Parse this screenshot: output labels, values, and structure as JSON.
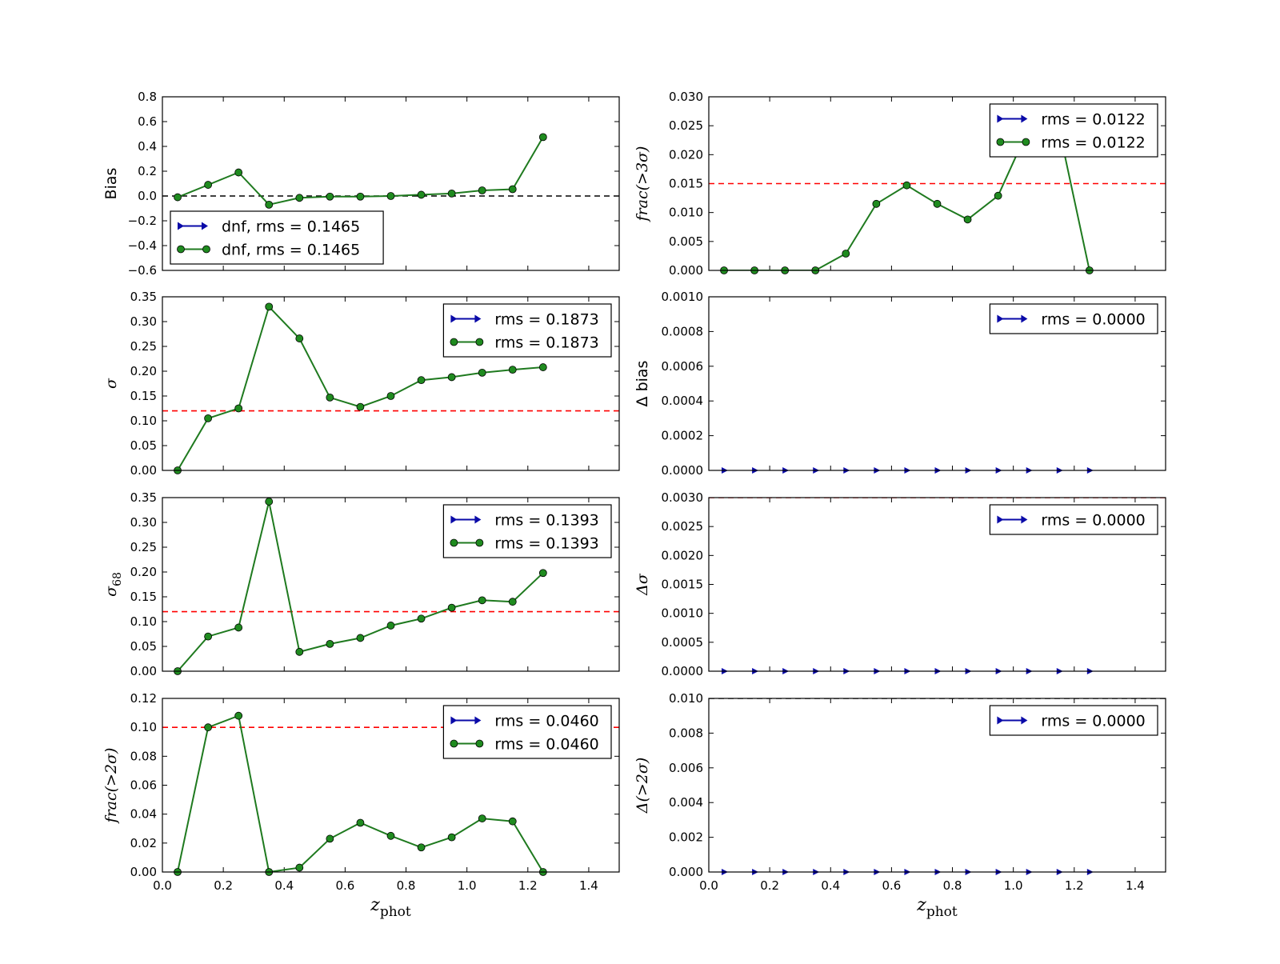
{
  "figure": {
    "colors": {
      "series_marker": "#1f8b1f",
      "series_line": "#1f7a1f",
      "arrow": "#0a0aa8",
      "ref_red": "#ff0000",
      "ref_black": "#000000"
    },
    "xlabel_main": "z",
    "xlabel_sub": "phot"
  },
  "chart_data": [
    {
      "type": "line",
      "id": "bias",
      "ylabel": "Bias",
      "ylabel_style": "plain",
      "ylim": [
        -0.6,
        0.8
      ],
      "yticks": [
        -0.6,
        -0.4,
        -0.2,
        0.0,
        0.2,
        0.4,
        0.6,
        0.8
      ],
      "ytick_decimals": 1,
      "xlim": [
        0.0,
        1.5
      ],
      "xticks": [
        0.0,
        0.2,
        0.4,
        0.6,
        0.8,
        1.0,
        1.2,
        1.4
      ],
      "show_xtick_labels": false,
      "hline": {
        "y": 0.0,
        "color": "black"
      },
      "x": [
        0.05,
        0.15,
        0.25,
        0.35,
        0.45,
        0.55,
        0.65,
        0.75,
        0.85,
        0.95,
        1.05,
        1.15,
        1.25
      ],
      "series": [
        {
          "y": [
            -0.01,
            0.09,
            0.19,
            -0.07,
            -0.015,
            -0.005,
            -0.005,
            0.0,
            0.01,
            0.02,
            0.045,
            0.055,
            0.475
          ]
        }
      ],
      "legend": {
        "loc": "lower-left",
        "entries": [
          "dnf, rms = 0.1465",
          "dnf, rms = 0.1465"
        ]
      }
    },
    {
      "type": "line",
      "id": "frac3",
      "ylabel": "frac(>3σ)",
      "ylabel_style": "italic",
      "ylim": [
        0.0,
        0.03
      ],
      "yticks": [
        0.0,
        0.005,
        0.01,
        0.015,
        0.02,
        0.025,
        0.03
      ],
      "ytick_decimals": 3,
      "xlim": [
        0.0,
        1.5
      ],
      "xticks": [
        0.0,
        0.2,
        0.4,
        0.6,
        0.8,
        1.0,
        1.2,
        1.4
      ],
      "show_xtick_labels": false,
      "hline": {
        "y": 0.015,
        "color": "red"
      },
      "x": [
        0.05,
        0.15,
        0.25,
        0.35,
        0.45,
        0.55,
        0.65,
        0.75,
        0.85,
        0.95,
        1.05,
        1.15,
        1.25
      ],
      "series": [
        {
          "y": [
            0.0,
            0.0,
            0.0,
            0.0,
            0.0029,
            0.0115,
            0.0147,
            0.0115,
            0.0088,
            0.0129,
            0.0245,
            0.0245,
            0.0
          ]
        }
      ],
      "legend": {
        "loc": "upper-right",
        "entries": [
          "rms = 0.0122",
          "rms = 0.0122"
        ]
      }
    },
    {
      "type": "line",
      "id": "sigma",
      "ylabel": "σ",
      "ylabel_style": "italic",
      "ylim": [
        0.0,
        0.35
      ],
      "yticks": [
        0.0,
        0.05,
        0.1,
        0.15,
        0.2,
        0.25,
        0.3,
        0.35
      ],
      "ytick_decimals": 2,
      "xlim": [
        0.0,
        1.5
      ],
      "xticks": [
        0.0,
        0.2,
        0.4,
        0.6,
        0.8,
        1.0,
        1.2,
        1.4
      ],
      "show_xtick_labels": false,
      "hline": {
        "y": 0.12,
        "color": "red"
      },
      "x": [
        0.05,
        0.15,
        0.25,
        0.35,
        0.45,
        0.55,
        0.65,
        0.75,
        0.85,
        0.95,
        1.05,
        1.15,
        1.25
      ],
      "series": [
        {
          "y": [
            0.0,
            0.105,
            0.125,
            0.33,
            0.266,
            0.147,
            0.128,
            0.15,
            0.182,
            0.188,
            0.197,
            0.203,
            0.208
          ]
        }
      ],
      "legend": {
        "loc": "upper-right",
        "entries": [
          "rms = 0.1873",
          "rms = 0.1873"
        ]
      }
    },
    {
      "type": "line",
      "id": "dbias",
      "ylabel": "Δ bias",
      "ylabel_style": "plain-large",
      "ylim": [
        0.0,
        0.001
      ],
      "yticks": [
        0.0,
        0.0002,
        0.0004,
        0.0006,
        0.0008,
        0.001
      ],
      "ytick_decimals": 4,
      "xlim": [
        0.0,
        1.5
      ],
      "xticks": [
        0.0,
        0.2,
        0.4,
        0.6,
        0.8,
        1.0,
        1.2,
        1.4
      ],
      "show_xtick_labels": false,
      "hline": null,
      "x": [
        0.05,
        0.15,
        0.25,
        0.35,
        0.45,
        0.55,
        0.65,
        0.75,
        0.85,
        0.95,
        1.05,
        1.15,
        1.25
      ],
      "arrows": true,
      "legend": {
        "loc": "upper-right",
        "entries": [
          "rms = 0.0000"
        ]
      }
    },
    {
      "type": "line",
      "id": "sigma68",
      "ylabel": "σ",
      "ylabel_sub": "68",
      "ylabel_style": "italic",
      "ylim": [
        0.0,
        0.35
      ],
      "yticks": [
        0.0,
        0.05,
        0.1,
        0.15,
        0.2,
        0.25,
        0.3,
        0.35
      ],
      "ytick_decimals": 2,
      "xlim": [
        0.0,
        1.5
      ],
      "xticks": [
        0.0,
        0.2,
        0.4,
        0.6,
        0.8,
        1.0,
        1.2,
        1.4
      ],
      "show_xtick_labels": false,
      "hline": {
        "y": 0.12,
        "color": "red"
      },
      "x": [
        0.05,
        0.15,
        0.25,
        0.35,
        0.45,
        0.55,
        0.65,
        0.75,
        0.85,
        0.95,
        1.05,
        1.15,
        1.25
      ],
      "series": [
        {
          "y": [
            0.0,
            0.07,
            0.088,
            0.342,
            0.039,
            0.055,
            0.067,
            0.092,
            0.106,
            0.128,
            0.143,
            0.14,
            0.198
          ]
        }
      ],
      "legend": {
        "loc": "upper-right",
        "entries": [
          "rms = 0.1393",
          "rms = 0.1393"
        ]
      }
    },
    {
      "type": "line",
      "id": "dsigma",
      "ylabel": "Δσ",
      "ylabel_style": "italic",
      "ylim": [
        0.0,
        0.003
      ],
      "yticks": [
        0.0,
        0.0005,
        0.001,
        0.0015,
        0.002,
        0.0025,
        0.003
      ],
      "ytick_decimals": 4,
      "xlim": [
        0.0,
        1.5
      ],
      "xticks": [
        0.0,
        0.2,
        0.4,
        0.6,
        0.8,
        1.0,
        1.2,
        1.4
      ],
      "show_xtick_labels": false,
      "hline": {
        "y": 0.003,
        "color": "red"
      },
      "x": [
        0.05,
        0.15,
        0.25,
        0.35,
        0.45,
        0.55,
        0.65,
        0.75,
        0.85,
        0.95,
        1.05,
        1.15,
        1.25
      ],
      "arrows": true,
      "legend": {
        "loc": "upper-right",
        "entries": [
          "rms = 0.0000"
        ]
      }
    },
    {
      "type": "line",
      "id": "frac2",
      "ylabel": "frac(>2σ)",
      "ylabel_style": "italic",
      "ylim": [
        0.0,
        0.12
      ],
      "yticks": [
        0.0,
        0.02,
        0.04,
        0.06,
        0.08,
        0.1,
        0.12
      ],
      "ytick_decimals": 2,
      "xlim": [
        0.0,
        1.5
      ],
      "xticks": [
        0.0,
        0.2,
        0.4,
        0.6,
        0.8,
        1.0,
        1.2,
        1.4
      ],
      "show_xtick_labels": true,
      "hline": {
        "y": 0.1,
        "color": "red"
      },
      "x": [
        0.05,
        0.15,
        0.25,
        0.35,
        0.45,
        0.55,
        0.65,
        0.75,
        0.85,
        0.95,
        1.05,
        1.15,
        1.25
      ],
      "series": [
        {
          "y": [
            0.0,
            0.1,
            0.108,
            0.0,
            0.003,
            0.023,
            0.034,
            0.025,
            0.017,
            0.024,
            0.037,
            0.035,
            0.0
          ]
        }
      ],
      "legend": {
        "loc": "upper-right",
        "entries": [
          "rms = 0.0460",
          "rms = 0.0460"
        ]
      }
    },
    {
      "type": "line",
      "id": "dfrac2",
      "ylabel": "Δ(>2σ)",
      "ylabel_style": "italic",
      "ylim": [
        0.0,
        0.01
      ],
      "yticks": [
        0.0,
        0.002,
        0.004,
        0.006,
        0.008,
        0.01
      ],
      "ytick_decimals": 3,
      "xlim": [
        0.0,
        1.5
      ],
      "xticks": [
        0.0,
        0.2,
        0.4,
        0.6,
        0.8,
        1.0,
        1.2,
        1.4
      ],
      "show_xtick_labels": true,
      "hline": {
        "y": 0.01,
        "color": "black"
      },
      "x": [
        0.05,
        0.15,
        0.25,
        0.35,
        0.45,
        0.55,
        0.65,
        0.75,
        0.85,
        0.95,
        1.05,
        1.15,
        1.25
      ],
      "arrows": true,
      "legend": {
        "loc": "upper-right",
        "entries": [
          "rms = 0.0000"
        ]
      }
    }
  ]
}
